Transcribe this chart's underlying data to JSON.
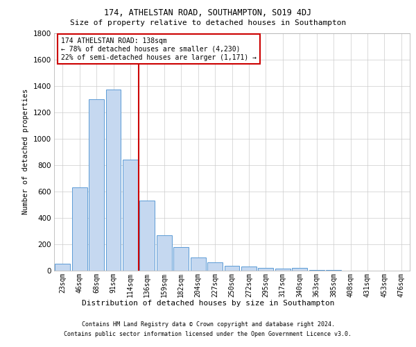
{
  "title1": "174, ATHELSTAN ROAD, SOUTHAMPTON, SO19 4DJ",
  "title2": "Size of property relative to detached houses in Southampton",
  "xlabel": "Distribution of detached houses by size in Southampton",
  "ylabel": "Number of detached properties",
  "categories": [
    "23sqm",
    "46sqm",
    "68sqm",
    "91sqm",
    "114sqm",
    "136sqm",
    "159sqm",
    "182sqm",
    "204sqm",
    "227sqm",
    "250sqm",
    "272sqm",
    "295sqm",
    "317sqm",
    "340sqm",
    "363sqm",
    "385sqm",
    "408sqm",
    "431sqm",
    "453sqm",
    "476sqm"
  ],
  "values": [
    50,
    630,
    1300,
    1370,
    840,
    530,
    270,
    180,
    100,
    65,
    35,
    30,
    20,
    15,
    20,
    5,
    3,
    2,
    1,
    0,
    0
  ],
  "bar_color": "#c5d8f0",
  "bar_edge_color": "#5b9bd5",
  "grid_color": "#cccccc",
  "annotation_box_color": "#cc0000",
  "line_color": "#cc0000",
  "subject_bar_index": 5,
  "annotation_text": "174 ATHELSTAN ROAD: 138sqm\n← 78% of detached houses are smaller (4,230)\n22% of semi-detached houses are larger (1,171) →",
  "ylim": [
    0,
    1800
  ],
  "yticks": [
    0,
    200,
    400,
    600,
    800,
    1000,
    1200,
    1400,
    1600,
    1800
  ],
  "footer1": "Contains HM Land Registry data © Crown copyright and database right 2024.",
  "footer2": "Contains public sector information licensed under the Open Government Licence v3.0.",
  "background_color": "#ffffff"
}
